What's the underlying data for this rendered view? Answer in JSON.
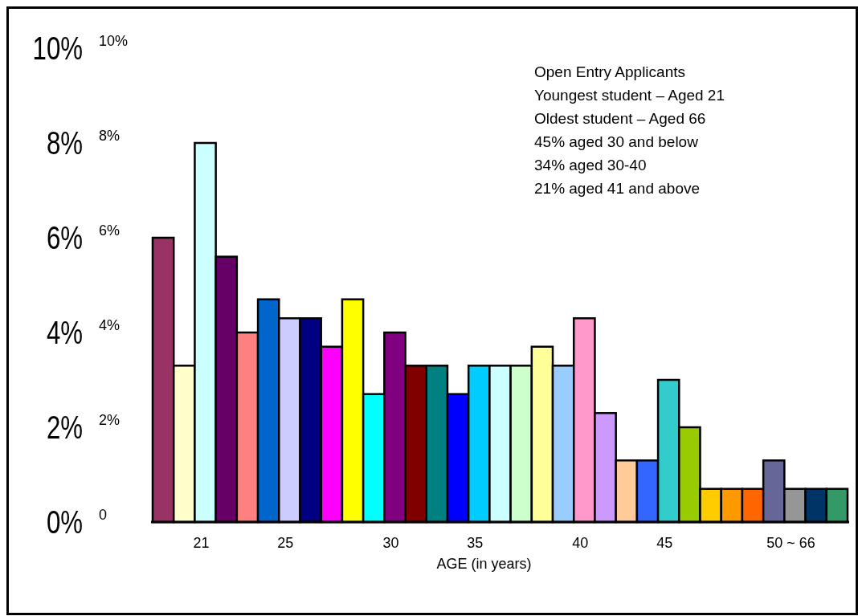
{
  "chart_data": {
    "type": "bar",
    "categories": [
      null,
      null,
      "21",
      null,
      null,
      null,
      "25",
      null,
      null,
      null,
      null,
      "30",
      null,
      null,
      null,
      "35",
      null,
      null,
      null,
      null,
      "40",
      null,
      null,
      null,
      "45",
      null,
      null,
      null,
      null,
      null,
      "50 ~ 66",
      null,
      null
    ],
    "values": [
      6.0,
      3.3,
      8.0,
      5.6,
      4.0,
      4.7,
      4.3,
      4.3,
      3.7,
      4.7,
      2.7,
      4.0,
      3.3,
      3.3,
      2.7,
      3.3,
      3.3,
      3.3,
      3.7,
      3.3,
      4.3,
      2.3,
      1.3,
      1.3,
      3.0,
      2.0,
      0.7,
      0.7,
      0.7,
      1.3,
      0.7,
      0.7,
      0.7
    ],
    "colors": [
      "#993366",
      "#ffffcc",
      "#ccffff",
      "#660066",
      "#ff8080",
      "#0066cc",
      "#ccccff",
      "#000080",
      "#ff00ff",
      "#ffff00",
      "#00ffff",
      "#800080",
      "#800000",
      "#008080",
      "#0000ff",
      "#00ccff",
      "#ccffff",
      "#ccffcc",
      "#ffff99",
      "#99ccff",
      "#ff99cc",
      "#cc99ff",
      "#ffcc99",
      "#3366ff",
      "#33cccc",
      "#99cc00",
      "#ffcc00",
      "#ff9900",
      "#ff6600",
      "#666699",
      "#969696",
      "#003366",
      "#339966"
    ],
    "xlabel": "AGE (in years)",
    "ylim": [
      0,
      10
    ],
    "yticks": [
      {
        "value": 0,
        "label": "0%"
      },
      {
        "value": 2,
        "label": "2%"
      },
      {
        "value": 4,
        "label": "4%"
      },
      {
        "value": 6,
        "label": "6%"
      },
      {
        "value": 8,
        "label": "8%"
      },
      {
        "value": 10,
        "label": "10%"
      }
    ],
    "y2lim": [
      0,
      10
    ],
    "y2ticks": [
      0,
      {
        "value": 2,
        "label": "2%"
      },
      {
        "value": 4,
        "label": "4%"
      },
      {
        "value": 6,
        "label": "6%"
      },
      {
        "value": 8,
        "label": "8%"
      },
      {
        "value": 10,
        "label": "10%"
      }
    ],
    "annotations": [
      "Open Entry Applicants",
      "Youngest student – Aged 21",
      "Oldest student – Aged 66",
      "45% aged 30 and below",
      "34% aged 30-40",
      "21% aged 41 and above"
    ],
    "grid": false
  }
}
